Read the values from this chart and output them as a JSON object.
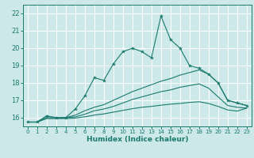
{
  "title": "",
  "xlabel": "Humidex (Indice chaleur)",
  "ylabel": "",
  "bg_color": "#cce8e8",
  "grid_color": "#ffffff",
  "line_color": "#1a7a6e",
  "xlim": [
    -0.5,
    23.5
  ],
  "ylim": [
    15.5,
    22.5
  ],
  "xticks": [
    0,
    1,
    2,
    3,
    4,
    5,
    6,
    7,
    8,
    9,
    10,
    11,
    12,
    13,
    14,
    15,
    16,
    17,
    18,
    19,
    20,
    21,
    22,
    23
  ],
  "yticks": [
    16,
    17,
    18,
    19,
    20,
    21,
    22
  ],
  "series1_x": [
    0,
    1,
    2,
    3,
    4,
    5,
    6,
    7,
    8,
    9,
    10,
    11,
    12,
    13,
    14,
    15,
    16,
    17,
    18,
    19,
    20,
    21,
    22,
    23
  ],
  "series1_y": [
    15.75,
    15.75,
    16.1,
    16.0,
    16.0,
    16.5,
    17.25,
    18.3,
    18.15,
    19.1,
    19.8,
    20.0,
    19.8,
    19.45,
    21.85,
    20.5,
    20.0,
    19.0,
    18.85,
    18.5,
    18.0,
    17.0,
    16.85,
    16.7
  ],
  "series2_x": [
    0,
    1,
    2,
    3,
    4,
    5,
    6,
    7,
    8,
    9,
    10,
    11,
    12,
    13,
    14,
    15,
    16,
    17,
    18,
    19,
    20,
    21,
    22,
    23
  ],
  "series2_y": [
    15.75,
    15.75,
    16.1,
    16.0,
    16.0,
    16.15,
    16.4,
    16.6,
    16.75,
    17.0,
    17.25,
    17.5,
    17.7,
    17.9,
    18.1,
    18.25,
    18.45,
    18.6,
    18.75,
    18.5,
    18.0,
    17.0,
    16.85,
    16.7
  ],
  "series3_x": [
    0,
    1,
    2,
    3,
    4,
    5,
    6,
    7,
    8,
    9,
    10,
    11,
    12,
    13,
    14,
    15,
    16,
    17,
    18,
    19,
    20,
    21,
    22,
    23
  ],
  "series3_y": [
    15.75,
    15.75,
    16.0,
    16.0,
    16.0,
    16.05,
    16.2,
    16.4,
    16.5,
    16.65,
    16.85,
    17.05,
    17.2,
    17.35,
    17.5,
    17.6,
    17.75,
    17.85,
    17.95,
    17.7,
    17.2,
    16.7,
    16.6,
    16.55
  ],
  "series4_x": [
    0,
    1,
    2,
    3,
    4,
    5,
    6,
    7,
    8,
    9,
    10,
    11,
    12,
    13,
    14,
    15,
    16,
    17,
    18,
    19,
    20,
    21,
    22,
    23
  ],
  "series4_y": [
    15.75,
    15.75,
    15.95,
    15.95,
    15.95,
    15.98,
    16.05,
    16.15,
    16.22,
    16.32,
    16.42,
    16.52,
    16.6,
    16.65,
    16.72,
    16.78,
    16.82,
    16.88,
    16.92,
    16.82,
    16.65,
    16.45,
    16.38,
    16.55
  ]
}
